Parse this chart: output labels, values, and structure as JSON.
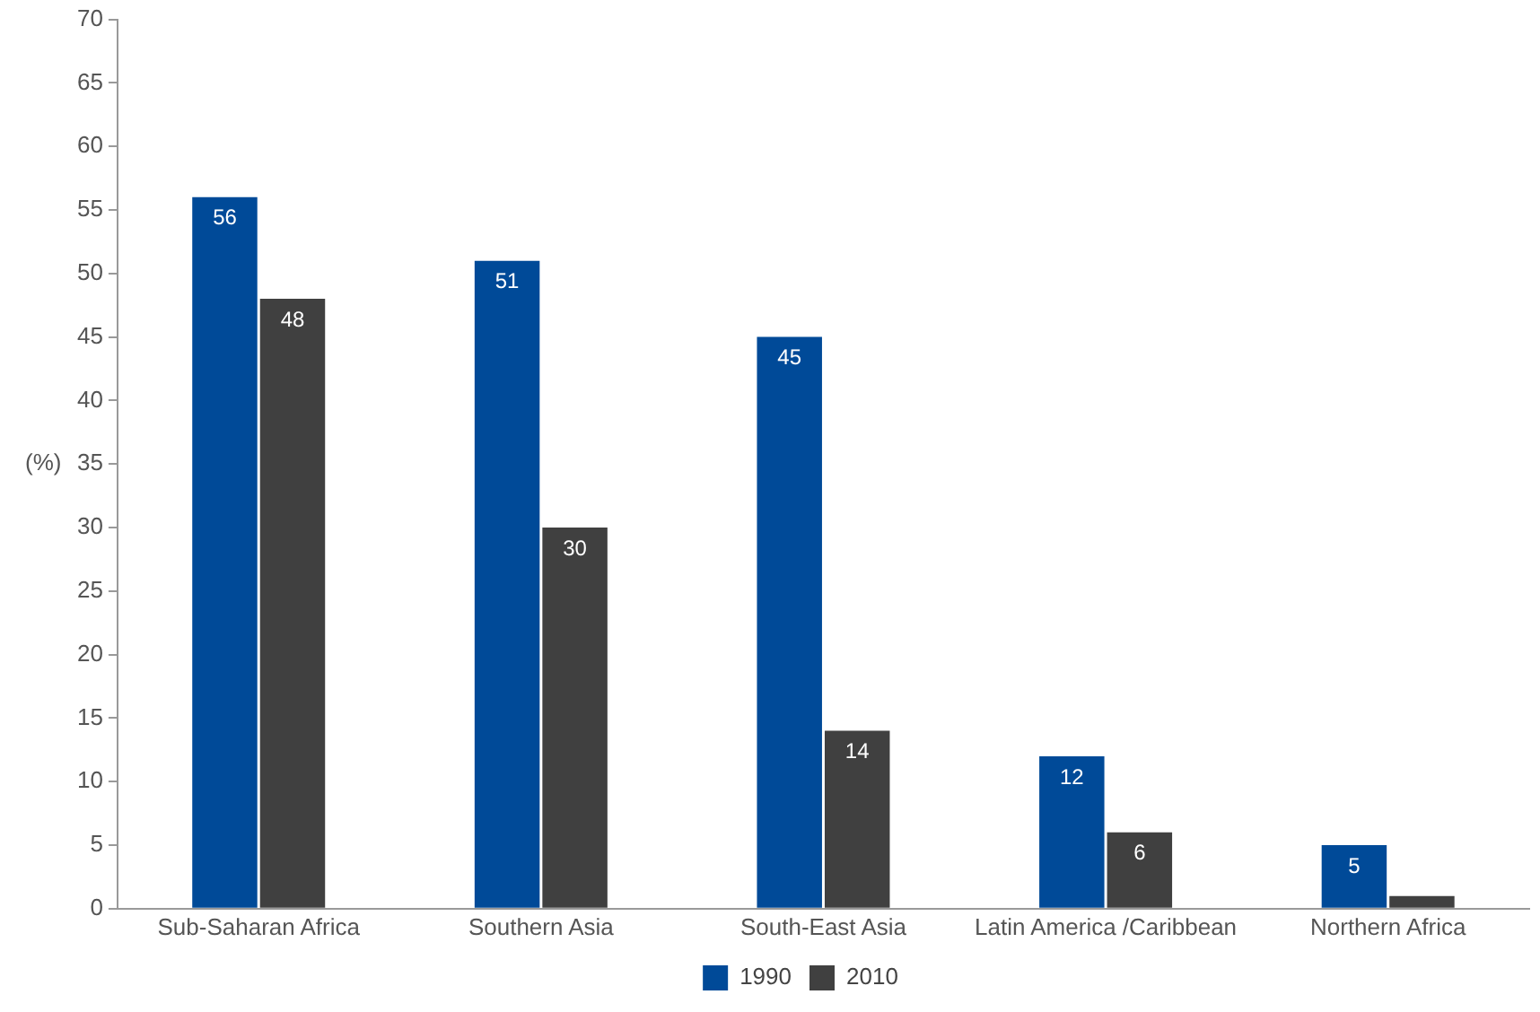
{
  "chart_data": {
    "type": "bar",
    "ylabel": "(%)",
    "categories": [
      "Sub-Saharan Africa",
      "Southern Asia",
      "South-East Asia",
      "Latin America /Caribbean",
      "Northern Africa"
    ],
    "series": [
      {
        "name": "1990",
        "color": "#004a98",
        "values": [
          56,
          51,
          45,
          12,
          5
        ],
        "value_labels": [
          "56",
          "51",
          "45",
          "12",
          "5"
        ]
      },
      {
        "name": "2010",
        "color": "#404040",
        "values": [
          48,
          30,
          14,
          6,
          1
        ],
        "value_labels": [
          "48",
          "30",
          "14",
          "6",
          null
        ]
      }
    ],
    "ylim": [
      0,
      70
    ],
    "yticks": [
      0,
      5,
      10,
      15,
      20,
      25,
      30,
      35,
      40,
      45,
      50,
      55,
      60,
      65,
      70
    ],
    "grid": false,
    "legend": "bottom"
  }
}
